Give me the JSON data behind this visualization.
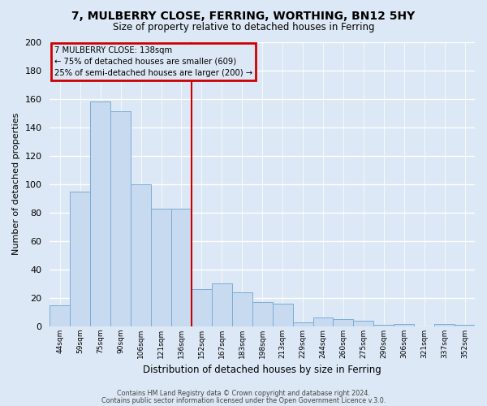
{
  "title": "7, MULBERRY CLOSE, FERRING, WORTHING, BN12 5HY",
  "subtitle": "Size of property relative to detached houses in Ferring",
  "xlabel": "Distribution of detached houses by size in Ferring",
  "ylabel": "Number of detached properties",
  "categories": [
    "44sqm",
    "59sqm",
    "75sqm",
    "90sqm",
    "106sqm",
    "121sqm",
    "136sqm",
    "152sqm",
    "167sqm",
    "183sqm",
    "198sqm",
    "213sqm",
    "229sqm",
    "244sqm",
    "260sqm",
    "275sqm",
    "290sqm",
    "306sqm",
    "321sqm",
    "337sqm",
    "352sqm"
  ],
  "values": [
    15,
    95,
    158,
    151,
    100,
    83,
    83,
    26,
    30,
    24,
    17,
    16,
    3,
    6,
    5,
    4,
    1,
    2,
    0,
    2,
    1
  ],
  "bar_color": "#c8daf0",
  "bar_edge_color": "#7aadd4",
  "vline_color": "#cc0000",
  "vline_x_index": 6,
  "annotation_title": "7 MULBERRY CLOSE: 138sqm",
  "annotation_line1": "← 75% of detached houses are smaller (609)",
  "annotation_line2": "25% of semi-detached houses are larger (200) →",
  "annotation_box_edge": "#cc0000",
  "ylim": [
    0,
    200
  ],
  "yticks": [
    0,
    20,
    40,
    60,
    80,
    100,
    120,
    140,
    160,
    180,
    200
  ],
  "footer1": "Contains HM Land Registry data © Crown copyright and database right 2024.",
  "footer2": "Contains public sector information licensed under the Open Government Licence v.3.0.",
  "background_color": "#dce8f5",
  "plot_bg_color": "#dce8f5",
  "grid_color": "#ffffff"
}
